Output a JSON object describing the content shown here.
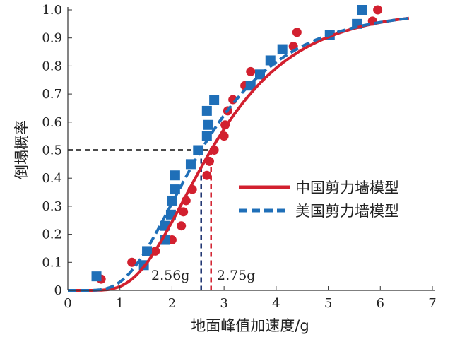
{
  "chart_data": {
    "type": "scatter",
    "title": "",
    "xlabel": "地面峰值加速度/g",
    "ylabel": "倒塌概率",
    "xlim": [
      0,
      7
    ],
    "ylim": [
      0,
      1.0
    ],
    "xticks": [
      "0",
      "1",
      "2",
      "3",
      "4",
      "5",
      "6",
      "7"
    ],
    "yticks": [
      "0",
      "0.1",
      "0.2",
      "0.3",
      "0.4",
      "0.5",
      "0.6",
      "0.7",
      "0.8",
      "0.9",
      "1.0"
    ],
    "grid": false,
    "legend_position": "center-right",
    "reference_probability": 0.5,
    "annotations": [
      "2.56g",
      "2.75g"
    ],
    "series": [
      {
        "name": "中国剪力墙模型",
        "color": "#d2202f",
        "marker": "circle",
        "line": "solid",
        "fit": {
          "type": "lognormal-cdf",
          "median": 2.75,
          "beta": 0.46,
          "x_max": 6.55
        },
        "points": [
          [
            0.64,
            0.04
          ],
          [
            1.23,
            0.1
          ],
          [
            1.68,
            0.14
          ],
          [
            2.0,
            0.18
          ],
          [
            2.18,
            0.23
          ],
          [
            2.22,
            0.28
          ],
          [
            2.27,
            0.32
          ],
          [
            2.39,
            0.36
          ],
          [
            2.67,
            0.41
          ],
          [
            2.72,
            0.46
          ],
          [
            2.81,
            0.5
          ],
          [
            3.0,
            0.55
          ],
          [
            3.02,
            0.59
          ],
          [
            3.07,
            0.64
          ],
          [
            3.17,
            0.68
          ],
          [
            3.4,
            0.73
          ],
          [
            3.51,
            0.78
          ],
          [
            4.33,
            0.87
          ],
          [
            4.4,
            0.92
          ],
          [
            5.85,
            0.96
          ],
          [
            5.95,
            1.0
          ]
        ]
      },
      {
        "name": "美国剪力墙模型",
        "color": "#1f6fb8",
        "marker": "square",
        "line": "dashed",
        "fit": {
          "type": "lognormal-cdf",
          "median": 2.56,
          "beta": 0.5,
          "x_max": 6.55
        },
        "points": [
          [
            0.55,
            0.05
          ],
          [
            1.46,
            0.09
          ],
          [
            1.52,
            0.14
          ],
          [
            1.86,
            0.18
          ],
          [
            1.86,
            0.23
          ],
          [
            1.98,
            0.27
          ],
          [
            2.0,
            0.32
          ],
          [
            2.06,
            0.36
          ],
          [
            2.06,
            0.41
          ],
          [
            2.36,
            0.45
          ],
          [
            2.5,
            0.5
          ],
          [
            2.67,
            0.55
          ],
          [
            2.7,
            0.59
          ],
          [
            2.67,
            0.64
          ],
          [
            2.81,
            0.68
          ],
          [
            3.51,
            0.73
          ],
          [
            3.69,
            0.77
          ],
          [
            3.89,
            0.82
          ],
          [
            4.12,
            0.86
          ],
          [
            5.03,
            0.91
          ],
          [
            5.55,
            0.95
          ],
          [
            5.65,
            1.0
          ]
        ]
      }
    ]
  }
}
